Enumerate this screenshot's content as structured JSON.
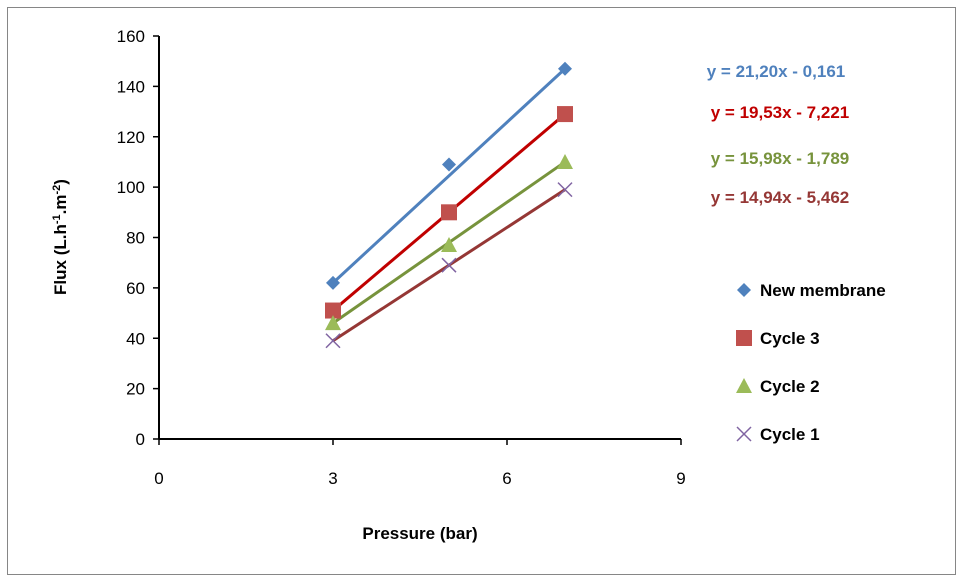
{
  "chart_data": {
    "type": "scatter",
    "title": "",
    "xlabel": "Pressure (bar)",
    "ylabel_main": "Flux (L.h",
    "ylabel_sup1": "-1",
    "ylabel_mid": ".m",
    "ylabel_sup2": "-2",
    "ylabel_end": ")",
    "xlim": [
      0,
      9
    ],
    "ylim": [
      0,
      160
    ],
    "xticks": [
      0,
      3,
      6,
      9
    ],
    "yticks": [
      0,
      20,
      40,
      60,
      80,
      100,
      120,
      140,
      160
    ],
    "grid": false,
    "legend_position": "right",
    "series": [
      {
        "name": "New membrane",
        "marker": "diamond",
        "color": "#4F81BD",
        "x": [
          3,
          5,
          7
        ],
        "y": [
          62,
          109,
          147
        ],
        "trendline": {
          "slope": 21.2,
          "intercept": -0.161,
          "label": "y = 21,20x - 0,161"
        }
      },
      {
        "name": "Cycle 3",
        "marker": "square",
        "color": "#C0504D",
        "line_color": "#C00000",
        "x": [
          3,
          5,
          7
        ],
        "y": [
          51,
          90,
          129
        ],
        "trendline": {
          "slope": 19.53,
          "intercept": -7.221,
          "label": "y = 19,53x - 7,221"
        }
      },
      {
        "name": "Cycle 2",
        "marker": "triangle",
        "color": "#9BBB59",
        "line_color": "#77933C",
        "x": [
          3,
          5,
          7
        ],
        "y": [
          46,
          77,
          110
        ],
        "trendline": {
          "slope": 15.98,
          "intercept": -1.789,
          "label": "y = 15,98x - 1,789"
        }
      },
      {
        "name": "Cycle 1",
        "marker": "x",
        "color": "#8064A2",
        "line_color": "#953735",
        "x": [
          3,
          5,
          7
        ],
        "y": [
          39,
          69,
          99
        ],
        "trendline": {
          "slope": 14.94,
          "intercept": -5.462,
          "label": "y = 14,94x - 5,462"
        }
      }
    ]
  }
}
